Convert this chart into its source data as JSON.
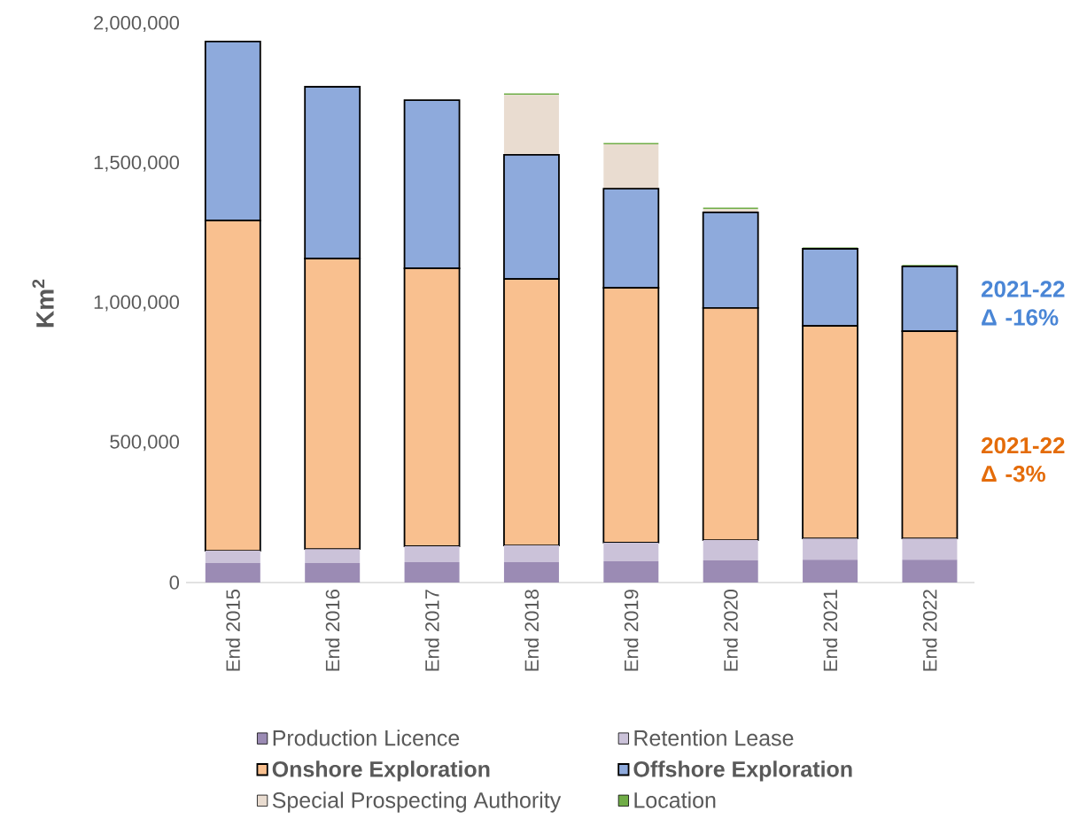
{
  "chart_data": {
    "type": "bar",
    "stacked": true,
    "ylabel": "Km$^{2}$",
    "categories": [
      "End 2015",
      "End 2016",
      "End 2017",
      "End 2018",
      "End 2019",
      "End 2020",
      "End 2021",
      "End 2022"
    ],
    "series": [
      {
        "name": "Production Licence",
        "color": "#9b8bb4",
        "values": [
          70000,
          70000,
          73000,
          73000,
          76000,
          79000,
          82000,
          82000
        ]
      },
      {
        "name": "Retention Lease",
        "color": "#cbc2d9",
        "values": [
          44000,
          50000,
          57000,
          60000,
          67000,
          73000,
          76000,
          76000
        ]
      },
      {
        "name": "Onshore Exploration",
        "color": "#f9c08f",
        "values": [
          1182000,
          1040000,
          995000,
          954000,
          912000,
          831000,
          761000,
          742000
        ]
      },
      {
        "name": "Offshore Exploration",
        "color": "#8eaadc",
        "values": [
          641000,
          615000,
          602000,
          444000,
          355000,
          342000,
          276000,
          232000
        ]
      },
      {
        "name": "Special Prospecting Authority",
        "color": "#e9dcd0",
        "values": [
          0,
          0,
          0,
          215000,
          159000,
          12000,
          0,
          0
        ]
      },
      {
        "name": "Location",
        "color": "#70ad47",
        "values": [
          0,
          0,
          0,
          5000,
          5000,
          5000,
          5000,
          5000
        ]
      }
    ],
    "ylim": [
      0,
      2000000
    ],
    "yticks": [
      {
        "value": 0,
        "label": "0"
      },
      {
        "value": 500000,
        "label": "500,000"
      },
      {
        "value": 1000000,
        "label": "1,000,000"
      },
      {
        "value": 1500000,
        "label": "1,500,000"
      },
      {
        "value": 2000000,
        "label": "2,000,000"
      }
    ],
    "legend": "bottom",
    "annotations": [
      "2021-22 Δ -16%",
      "2021-22 Δ -3%"
    ]
  }
}
